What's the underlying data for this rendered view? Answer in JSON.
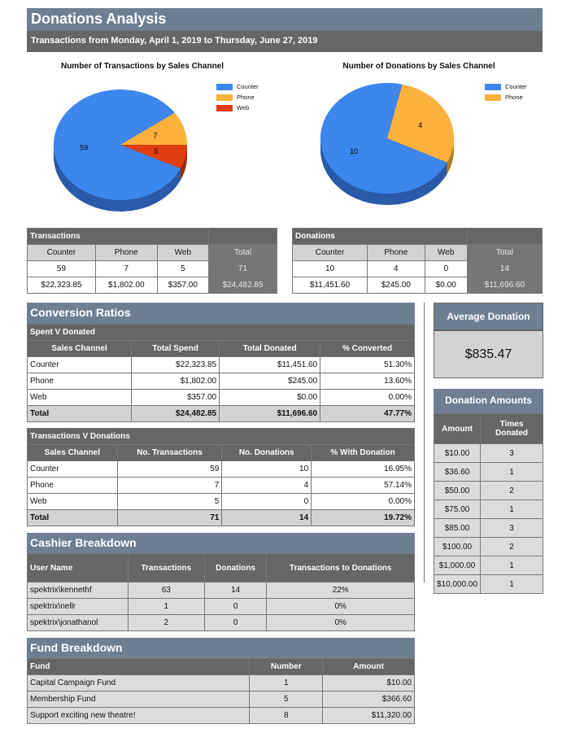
{
  "title": "Donations Analysis",
  "subtitle": "Transactions from Monday, April 1, 2019 to Thursday, June 27, 2019",
  "colors": {
    "counter": "#3d86ee",
    "phone": "#fbb13c",
    "web": "#e03d0e"
  },
  "chart_data": [
    {
      "type": "pie",
      "title": "Number of Transactions by Sales Channel",
      "categories": [
        "Counter",
        "Phone",
        "Web"
      ],
      "values": [
        59,
        7,
        5
      ],
      "legend": "top-right"
    },
    {
      "type": "pie",
      "title": "Number of Donations by Sales Channel",
      "categories": [
        "Counter",
        "Phone"
      ],
      "values": [
        10,
        4
      ],
      "legend": "top-right"
    }
  ],
  "transactions": {
    "title": "Transactions",
    "headers": [
      "Counter",
      "Phone",
      "Web",
      "Total"
    ],
    "counts": [
      "59",
      "7",
      "5",
      "71"
    ],
    "amounts": [
      "$22,323.85",
      "$1,802.00",
      "$357.00",
      "$24,482.85"
    ]
  },
  "donations": {
    "title": "Donations",
    "headers": [
      "Counter",
      "Phone",
      "Web",
      "Total"
    ],
    "counts": [
      "10",
      "4",
      "0",
      "14"
    ],
    "amounts": [
      "$11,451.60",
      "$245.00",
      "$0.00",
      "$11,696.60"
    ]
  },
  "conversion": {
    "title": "Conversion Ratios",
    "spent": {
      "title": "Spent V Donated",
      "headers": [
        "Sales Channel",
        "Total Spend",
        "Total  Donated",
        "% Converted"
      ],
      "rows": [
        [
          "Counter",
          "$22,323.85",
          "$11,451.60",
          "51.30%"
        ],
        [
          "Phone",
          "$1,802.00",
          "$245.00",
          "13.60%"
        ],
        [
          "Web",
          "$357.00",
          "$0.00",
          "0.00%"
        ],
        [
          "Total",
          "$24,482.85",
          "$11,696.60",
          "47.77%"
        ]
      ]
    },
    "trans": {
      "title": "Transactions V Donations",
      "headers": [
        "Sales Channel",
        "No. Transactions",
        "No. Donations",
        "% With Donation"
      ],
      "rows": [
        [
          "Counter",
          "59",
          "10",
          "16.95%"
        ],
        [
          "Phone",
          "7",
          "4",
          "57.14%"
        ],
        [
          "Web",
          "5",
          "0",
          "0.00%"
        ],
        [
          "Total",
          "71",
          "14",
          "19.72%"
        ]
      ]
    }
  },
  "cashier": {
    "title": "Cashier Breakdown",
    "headers": [
      "User Name",
      "Transactions",
      "Donations",
      "Transactions to Donations"
    ],
    "rows": [
      [
        "spektrix\\kennethf",
        "63",
        "14",
        "22%"
      ],
      [
        "spektrix\\nellr",
        "1",
        "0",
        "0%"
      ],
      [
        "spektrix\\jonathanol",
        "2",
        "0",
        "0%"
      ]
    ]
  },
  "fund": {
    "title": "Fund Breakdown",
    "headers": [
      "Fund",
      "Number",
      "Amount"
    ],
    "rows": [
      [
        "Capital Campaign Fund",
        "1",
        "$10.00"
      ],
      [
        "Membership Fund",
        "5",
        "$366.60"
      ],
      [
        "Support exciting new theatre!",
        "8",
        "$11,320.00"
      ]
    ]
  },
  "average": {
    "title": "Average Donation",
    "value": "$835.47"
  },
  "amounts": {
    "title": "Donation Amounts",
    "headers": [
      "Amount",
      "Times Donated"
    ],
    "rows": [
      [
        "$10.00",
        "3"
      ],
      [
        "$36.60",
        "1"
      ],
      [
        "$50.00",
        "2"
      ],
      [
        "$75.00",
        "1"
      ],
      [
        "$85.00",
        "3"
      ],
      [
        "$100.00",
        "2"
      ],
      [
        "$1,000.00",
        "1"
      ],
      [
        "$10,000.00",
        "1"
      ]
    ]
  }
}
